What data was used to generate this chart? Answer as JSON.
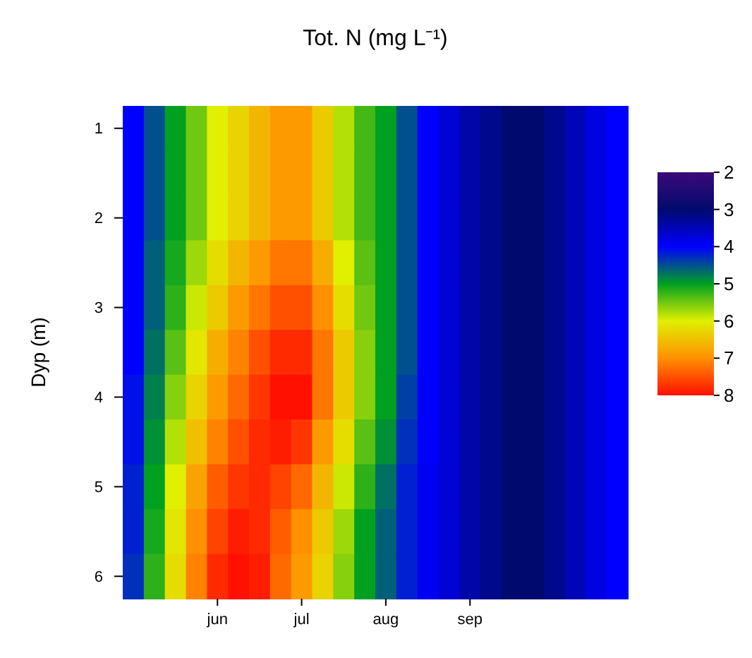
{
  "chart_data": {
    "type": "heatmap",
    "title": "Tot. N (mg L⁻¹)",
    "ylabel": "Dyp (m)",
    "categories": [
      null,
      null,
      null,
      null,
      "jun",
      null,
      null,
      null,
      "jul",
      null,
      null,
      null,
      "aug",
      null,
      null,
      null,
      "sep",
      null,
      null,
      null,
      null,
      null,
      null,
      null
    ],
    "y_categories": [
      "1",
      null,
      "2",
      null,
      "3",
      null,
      "4",
      null,
      "5",
      null,
      "6"
    ],
    "cells": [
      [
        4.0,
        4.5,
        5.0,
        5.5,
        6.0,
        6.3,
        6.6,
        6.9,
        6.9,
        6.4,
        5.8,
        5.3,
        5.0,
        4.5,
        4.0,
        3.7,
        3.4,
        3.2,
        3.0,
        3.0,
        3.2,
        3.5,
        3.8,
        4.0
      ],
      [
        4.0,
        4.5,
        5.0,
        5.5,
        6.0,
        6.3,
        6.6,
        6.9,
        6.9,
        6.4,
        5.8,
        5.3,
        5.0,
        4.5,
        4.0,
        3.7,
        3.4,
        3.2,
        3.0,
        3.0,
        3.2,
        3.5,
        3.8,
        4.0
      ],
      [
        4.0,
        4.5,
        5.0,
        5.5,
        6.0,
        6.3,
        6.6,
        6.9,
        6.9,
        6.4,
        5.8,
        5.3,
        5.0,
        4.5,
        4.0,
        3.7,
        3.4,
        3.2,
        3.0,
        3.0,
        3.2,
        3.5,
        3.8,
        4.0
      ],
      [
        4.0,
        4.6,
        5.1,
        5.7,
        6.2,
        6.6,
        6.9,
        7.2,
        7.2,
        6.7,
        6.0,
        5.4,
        5.0,
        4.5,
        4.0,
        3.7,
        3.4,
        3.2,
        3.0,
        3.0,
        3.2,
        3.5,
        3.8,
        4.0
      ],
      [
        4.0,
        4.6,
        5.2,
        5.9,
        6.4,
        6.9,
        7.2,
        7.5,
        7.5,
        7.0,
        6.2,
        5.5,
        5.0,
        4.5,
        4.0,
        3.7,
        3.4,
        3.2,
        3.0,
        3.0,
        3.2,
        3.5,
        3.8,
        4.0
      ],
      [
        4.0,
        4.7,
        5.4,
        6.1,
        6.7,
        7.1,
        7.5,
        7.8,
        7.8,
        7.2,
        6.4,
        5.6,
        5.0,
        4.5,
        4.0,
        3.7,
        3.4,
        3.2,
        3.0,
        3.0,
        3.2,
        3.5,
        3.8,
        4.0
      ],
      [
        4.1,
        4.8,
        5.6,
        6.3,
        6.9,
        7.3,
        7.7,
        8.0,
        8.0,
        7.2,
        6.4,
        5.6,
        5.0,
        4.4,
        4.0,
        3.7,
        3.4,
        3.2,
        3.0,
        3.0,
        3.2,
        3.5,
        3.8,
        4.0
      ],
      [
        4.1,
        4.9,
        5.8,
        6.5,
        7.1,
        7.5,
        7.8,
        7.9,
        7.7,
        6.9,
        6.2,
        5.4,
        4.9,
        4.3,
        4.0,
        3.7,
        3.4,
        3.2,
        3.0,
        3.0,
        3.2,
        3.5,
        3.8,
        4.0
      ],
      [
        4.2,
        5.0,
        6.0,
        6.8,
        7.4,
        7.7,
        7.8,
        7.6,
        7.3,
        6.6,
        5.9,
        5.2,
        4.7,
        4.2,
        3.9,
        3.7,
        3.4,
        3.2,
        3.0,
        3.0,
        3.2,
        3.5,
        3.8,
        4.0
      ],
      [
        4.2,
        5.1,
        6.1,
        7.0,
        7.6,
        7.9,
        7.8,
        7.4,
        7.0,
        6.4,
        5.7,
        5.0,
        4.6,
        4.2,
        3.9,
        3.7,
        3.4,
        3.2,
        3.0,
        3.0,
        3.2,
        3.5,
        3.8,
        4.0
      ],
      [
        4.3,
        5.2,
        6.2,
        7.1,
        7.8,
        8.0,
        7.9,
        7.3,
        6.9,
        6.3,
        5.6,
        5.0,
        4.6,
        4.2,
        3.9,
        3.7,
        3.4,
        3.2,
        3.0,
        3.0,
        3.2,
        3.5,
        3.8,
        4.0
      ]
    ],
    "clim": [
      2,
      8
    ],
    "cticks": [
      2,
      3,
      4,
      5,
      6,
      7,
      8
    ],
    "colors": [
      "#3d0a7a",
      "#000a6e",
      "#0000ff",
      "#00a020",
      "#e0f000",
      "#ff9000",
      "#ff1000"
    ]
  }
}
